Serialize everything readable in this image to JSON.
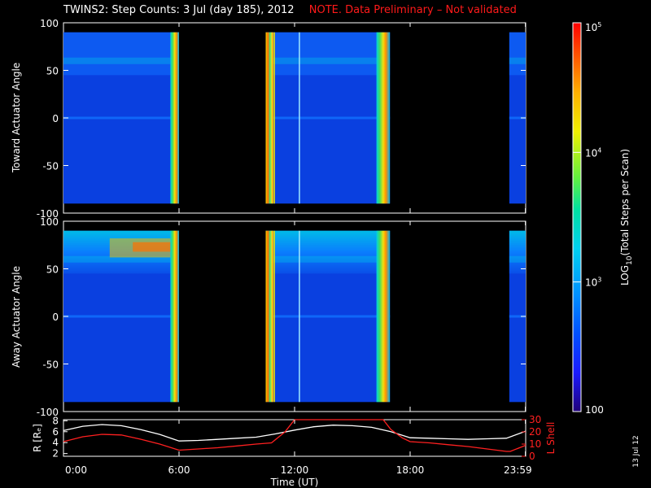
{
  "header": {
    "title": "TWINS2: Step Counts:  3 Jul (day 185), 2012",
    "note": "NOTE. Data Preliminary – Not validated"
  },
  "stamp": "13 Jul 12",
  "chart_data": [
    {
      "type": "heatmap",
      "panel": "toward",
      "ylabel": "Toward Actuator Angle",
      "ylim": [
        -100,
        100
      ],
      "yticks": [
        100,
        50,
        0,
        -50,
        -100
      ],
      "angle_range": [
        -90,
        90
      ],
      "data_intervals_hours": [
        [
          0.0,
          6.0
        ],
        [
          10.5,
          16.95
        ],
        [
          23.15,
          24.0
        ]
      ],
      "high_count_bands_hours": [
        [
          5.55,
          6.0
        ],
        [
          10.5,
          10.9
        ],
        [
          16.25,
          16.95
        ]
      ],
      "colors": [
        "#1a1a9a",
        "#0a40e0",
        "#1070ff",
        "#00c8e8",
        "#20e070",
        "#f0f020",
        "#ff9000",
        "#ff2000"
      ]
    },
    {
      "type": "heatmap",
      "panel": "away",
      "ylabel": "Away Actuator Angle",
      "ylim": [
        -100,
        100
      ],
      "yticks": [
        100,
        50,
        0,
        -50,
        -100
      ],
      "angle_range": [
        -90,
        90
      ],
      "data_intervals_hours": [
        [
          0.0,
          6.0
        ],
        [
          10.5,
          16.95
        ],
        [
          23.15,
          24.0
        ]
      ],
      "high_count_bands_hours": [
        [
          5.55,
          6.0
        ],
        [
          10.5,
          10.9
        ],
        [
          16.25,
          16.95
        ]
      ],
      "colors": [
        "#1a1a9a",
        "#0a40e0",
        "#1070ff",
        "#00c8e8",
        "#20e070",
        "#f0f020",
        "#ff9000",
        "#ff2000"
      ]
    },
    {
      "type": "line",
      "panel": "orbit",
      "xlabel": "Time (UT)",
      "x_ticks": [
        "0:00",
        "6:00",
        "12:00",
        "18:00",
        "23:59"
      ],
      "x_tick_hours": [
        0,
        6,
        12,
        18,
        23.983
      ],
      "left_axis": {
        "label": "R [Rₑ]",
        "ylim": [
          1.5,
          8.2
        ],
        "ticks": [
          2,
          4,
          6,
          8
        ]
      },
      "right_axis": {
        "label": "L Shell",
        "ylim": [
          0,
          30
        ],
        "ticks": [
          0,
          10,
          20,
          30
        ]
      },
      "series": [
        {
          "axis": "left",
          "color": "#ffffff",
          "x": [
            0,
            1,
            2,
            3,
            4,
            5,
            6,
            7,
            8,
            9,
            10,
            11,
            12,
            13,
            14,
            15,
            16,
            17,
            18,
            19,
            20,
            21,
            22,
            23,
            24
          ],
          "y": [
            6.2,
            7.0,
            7.3,
            7.1,
            6.4,
            5.5,
            4.3,
            4.4,
            4.6,
            4.8,
            5.0,
            5.6,
            6.3,
            6.9,
            7.2,
            7.1,
            6.8,
            6.0,
            4.9,
            4.8,
            4.7,
            4.6,
            4.7,
            4.8,
            6.1
          ]
        },
        {
          "axis": "right",
          "color": "#ff2020",
          "x": [
            0,
            1,
            2,
            3,
            4,
            5,
            6,
            7,
            8,
            9,
            10,
            10.8,
            11.5,
            12.0,
            16.6,
            17.0,
            17.6,
            18,
            19,
            20,
            21,
            22,
            23,
            23.2,
            24
          ],
          "y": [
            12,
            16,
            18,
            17.5,
            14,
            10,
            5,
            6,
            7,
            8.5,
            10,
            11,
            20,
            30,
            30,
            22,
            15,
            12,
            11,
            9.5,
            8,
            6,
            4,
            4,
            9
          ]
        }
      ]
    }
  ],
  "colorbar": {
    "label": "LOG10(Total Steps per Scan)",
    "label_main": "LOG",
    "label_sub": "10",
    "label_rest": "(Total Steps per Scan)",
    "ticks": [
      {
        "base": "10",
        "exp": "5",
        "value": 100000
      },
      {
        "base": "10",
        "exp": "4",
        "value": 10000
      },
      {
        "base": "10",
        "exp": "3",
        "value": 1000
      },
      {
        "base": "100",
        "exp": "",
        "value": 100
      }
    ],
    "colors": [
      "#20007a",
      "#1a1aff",
      "#0050ff",
      "#0090ff",
      "#00d0f0",
      "#00e0a0",
      "#60f040",
      "#f0f000",
      "#ffb000",
      "#ff5000",
      "#ff0000"
    ]
  }
}
